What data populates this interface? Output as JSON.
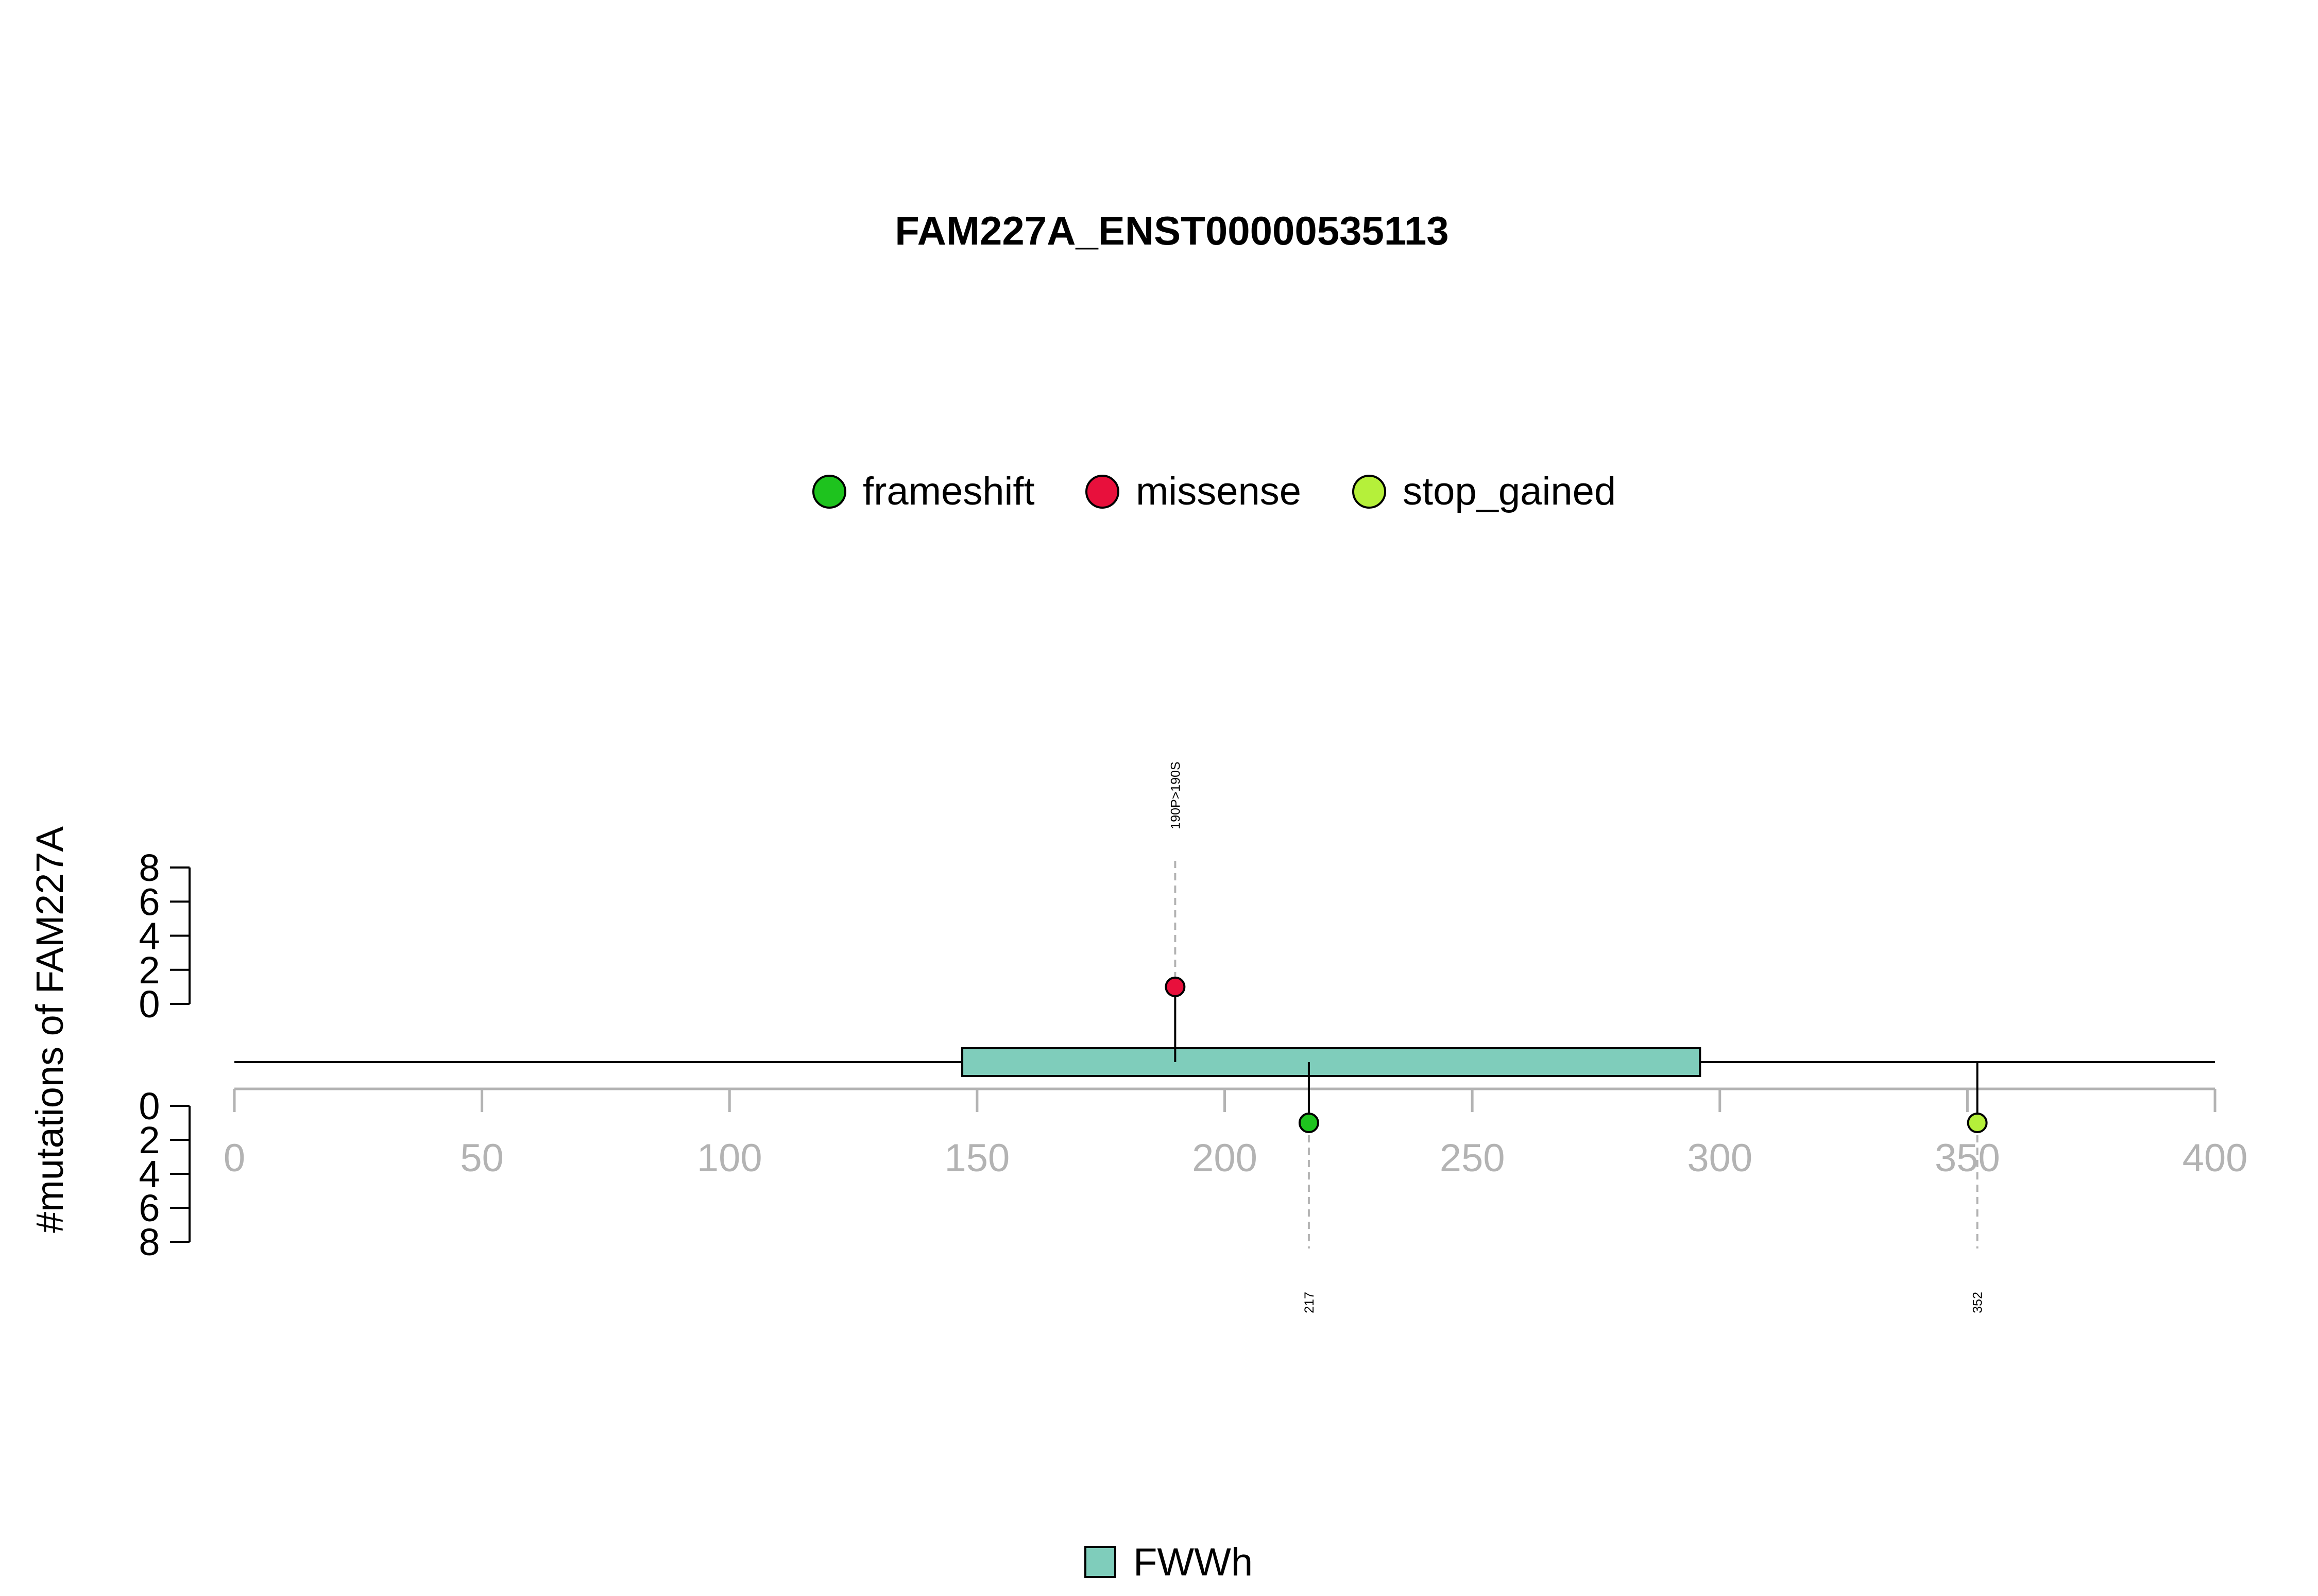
{
  "chart_data": {
    "type": "lollipop",
    "title": "FAM227A_ENST00000535113",
    "ylabel": "#mutations of FAM227A",
    "xlim": [
      0,
      400
    ],
    "x_ticks": [
      0,
      50,
      100,
      150,
      200,
      250,
      300,
      350,
      400
    ],
    "upper_y_ticks": [
      0,
      2,
      4,
      6,
      8
    ],
    "lower_y_ticks": [
      0,
      2,
      4,
      6,
      8
    ],
    "protein_length": 400,
    "legend": [
      {
        "label": "frameshift",
        "color": "#1ec31e"
      },
      {
        "label": "missense",
        "color": "#e8103c"
      },
      {
        "label": "stop_gained",
        "color": "#b5f03a"
      }
    ],
    "mutations": [
      {
        "position": 190,
        "count": 1,
        "type": "missense",
        "side": "top",
        "label": "190P>190S"
      },
      {
        "position": 217,
        "count": 1,
        "type": "frameshift",
        "side": "bottom",
        "label": "217"
      },
      {
        "position": 352,
        "count": 1,
        "type": "stop_gained",
        "side": "bottom",
        "label": "352"
      }
    ],
    "domains": [
      {
        "name": "FWWh",
        "start": 147,
        "end": 296,
        "color": "#7fcdbb"
      }
    ],
    "domain_legend": [
      {
        "label": "FWWh",
        "color": "#7fcdbb"
      }
    ]
  }
}
